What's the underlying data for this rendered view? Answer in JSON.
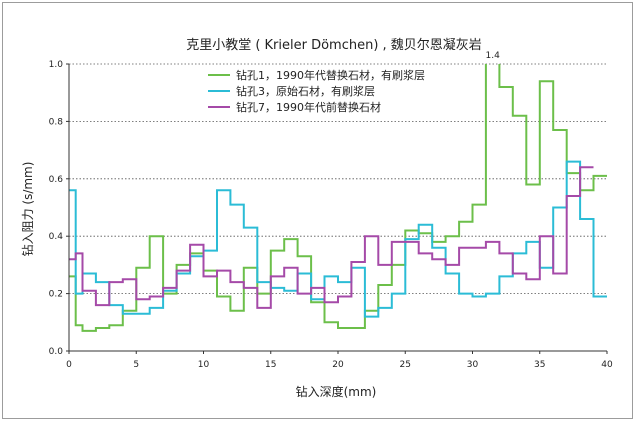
{
  "chart_data": {
    "type": "line",
    "step": true,
    "title": "克里小教堂 ( Krieler Dömchen) , 魏贝尔恩凝灰岩",
    "xlabel": "钻入深度(mm)",
    "ylabel": "钻入阻力 (s/mm)",
    "xlim": [
      0,
      40
    ],
    "ylim": [
      0,
      1.0
    ],
    "xticks": [
      0,
      5,
      10,
      15,
      20,
      25,
      30,
      35,
      40
    ],
    "yticks": [
      0.0,
      0.2,
      0.4,
      0.6,
      0.8,
      1.0
    ],
    "ytick_labels": [
      "0.0",
      "0.2",
      "0.4",
      "0.6",
      "0.8",
      "1.0"
    ],
    "grid": "horizontal dotted",
    "legend_position": "top-left",
    "annotations": [
      {
        "text": "1.4",
        "x": 31.5,
        "y": 1.0
      }
    ],
    "series": [
      {
        "name": "钻孔1，1990年代替换石材，有刷浆层",
        "color": "#6cbf4a",
        "x": [
          0,
          0.5,
          1,
          2,
          3,
          4,
          5,
          6,
          7,
          8,
          9,
          10,
          11,
          12,
          13,
          14,
          15,
          16,
          17,
          18,
          19,
          20,
          21,
          22,
          23,
          24,
          25,
          26,
          27,
          28,
          29,
          30,
          31,
          32,
          33,
          34,
          35,
          36,
          37,
          38,
          39,
          40
        ],
        "y": [
          0.26,
          0.09,
          0.07,
          0.08,
          0.09,
          0.14,
          0.29,
          0.4,
          0.2,
          0.3,
          0.34,
          0.28,
          0.19,
          0.14,
          0.29,
          0.2,
          0.35,
          0.39,
          0.33,
          0.17,
          0.1,
          0.08,
          0.08,
          0.14,
          0.23,
          0.3,
          0.42,
          0.41,
          0.38,
          0.4,
          0.45,
          0.51,
          1.4,
          0.92,
          0.82,
          0.58,
          0.94,
          0.77,
          0.62,
          0.56,
          0.61,
          0.61
        ]
      },
      {
        "name": "钻孔3，原始石材，有刷浆层",
        "color": "#2bbcd6",
        "x": [
          0,
          0.5,
          1,
          2,
          3,
          4,
          5,
          6,
          7,
          8,
          9,
          10,
          11,
          12,
          13,
          14,
          15,
          16,
          17,
          18,
          19,
          20,
          21,
          22,
          23,
          24,
          25,
          26,
          27,
          28,
          29,
          30,
          31,
          32,
          33,
          34,
          35,
          36,
          37,
          38,
          39,
          40
        ],
        "y": [
          0.56,
          0.2,
          0.27,
          0.24,
          0.16,
          0.13,
          0.13,
          0.15,
          0.21,
          0.27,
          0.33,
          0.35,
          0.56,
          0.51,
          0.43,
          0.24,
          0.22,
          0.21,
          0.27,
          0.18,
          0.26,
          0.24,
          0.29,
          0.12,
          0.15,
          0.2,
          0.39,
          0.44,
          0.36,
          0.27,
          0.2,
          0.19,
          0.2,
          0.26,
          0.34,
          0.38,
          0.29,
          0.5,
          0.66,
          0.46,
          0.19,
          0.19
        ]
      },
      {
        "name": "钻孔7，1990年代前替换石材",
        "color": "#a54aa8",
        "x": [
          0,
          0.5,
          1,
          2,
          3,
          4,
          5,
          6,
          7,
          8,
          9,
          10,
          11,
          12,
          13,
          14,
          15,
          16,
          17,
          18,
          19,
          20,
          21,
          22,
          23,
          24,
          25,
          26,
          27,
          28,
          29,
          30,
          31,
          32,
          33,
          34,
          35,
          36,
          37,
          38,
          39
        ],
        "y": [
          0.32,
          0.34,
          0.21,
          0.16,
          0.24,
          0.25,
          0.18,
          0.19,
          0.22,
          0.28,
          0.37,
          0.26,
          0.28,
          0.24,
          0.22,
          0.15,
          0.26,
          0.29,
          0.2,
          0.22,
          0.17,
          0.19,
          0.31,
          0.4,
          0.3,
          0.38,
          0.38,
          0.34,
          0.32,
          0.3,
          0.36,
          0.36,
          0.38,
          0.34,
          0.27,
          0.25,
          0.4,
          0.27,
          0.54,
          0.64,
          0.64
        ]
      }
    ]
  }
}
